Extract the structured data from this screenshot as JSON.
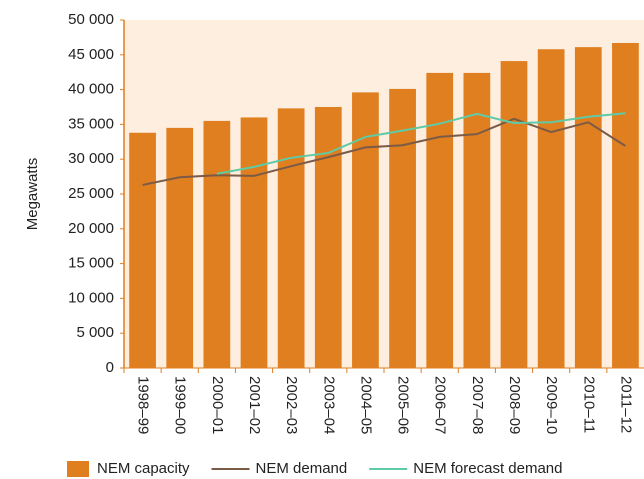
{
  "chart_data": {
    "type": "bar",
    "y_label": "Megawatts",
    "categories": [
      "1998–99",
      "1999–00",
      "2000–01",
      "2001–02",
      "2002–03",
      "2003–04",
      "2004–05",
      "2005–06",
      "2006–07",
      "2007–08",
      "2008–09",
      "2009–10",
      "2010–11",
      "2011–12"
    ],
    "series": [
      {
        "name": "NEM capacity",
        "type": "bar",
        "color": "#e07f1f",
        "values": [
          33800,
          34500,
          35500,
          36000,
          37300,
          37500,
          39600,
          40100,
          42400,
          42400,
          44100,
          45800,
          46100,
          46700
        ]
      },
      {
        "name": "NEM demand",
        "type": "line",
        "color": "#7b5a46",
        "values": [
          26300,
          27400,
          27700,
          27600,
          29000,
          30300,
          31700,
          32000,
          33200,
          33600,
          35800,
          33900,
          35300,
          31900
        ]
      },
      {
        "name": "NEM forecast demand",
        "type": "line",
        "color": "#5fcaa6",
        "values": [
          null,
          null,
          27900,
          28900,
          30200,
          30900,
          33200,
          34100,
          35100,
          36500,
          35200,
          35300,
          36100,
          36600
        ]
      }
    ],
    "ylim": [
      0,
      50000
    ],
    "yticks": [
      0,
      {
        "value": 5000,
        "label": "5 000"
      },
      {
        "value": 10000,
        "label": "10 000"
      },
      {
        "value": 15000,
        "label": "15 000"
      },
      {
        "value": 20000,
        "label": "20 000"
      },
      {
        "value": 25000,
        "label": "25 000"
      },
      {
        "value": 30000,
        "label": "30 000"
      },
      {
        "value": 35000,
        "label": "35 000"
      },
      {
        "value": 40000,
        "label": "40 000"
      },
      {
        "value": 45000,
        "label": "45 000"
      },
      {
        "value": 50000,
        "label": "50 000"
      }
    ],
    "plot_background": "#fdeee0",
    "legend": "bottom"
  }
}
